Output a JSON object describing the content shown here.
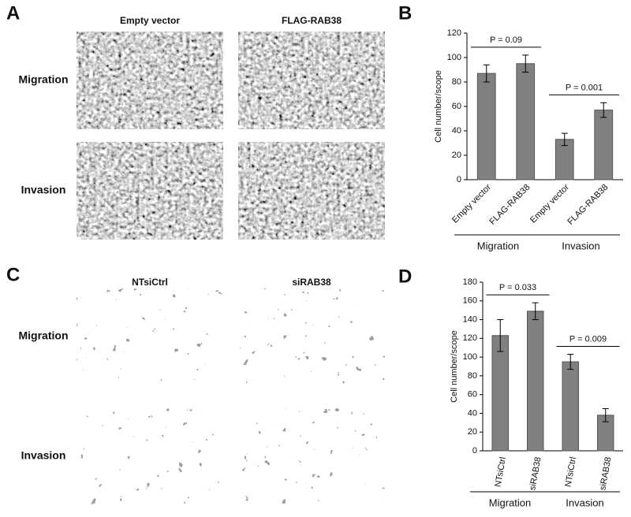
{
  "panels": [
    {
      "label": "A",
      "columns": [
        "Empty vector",
        "FLAG-RAB38"
      ],
      "rows": [
        "Migration",
        "Invasion"
      ]
    },
    {
      "label": "C",
      "columns": [
        "NTsiCtrl",
        "siRAB38"
      ],
      "rows": [
        "Migration",
        "Invasion"
      ]
    }
  ],
  "chart_data": [
    {
      "type": "bar",
      "panel_label": "B",
      "y_label": "Cell number/scope",
      "categories": [
        "Empty vector",
        "FLAG-RAB38",
        "Empty vector",
        "FLAG-RAB38"
      ],
      "values": [
        87,
        95,
        33,
        57
      ],
      "errors": [
        7,
        7,
        5,
        6
      ],
      "color": "#808080",
      "groups": [
        "Migration",
        "Invasion"
      ],
      "annotations": [
        "P = 0.09",
        "P = 0.001"
      ],
      "ylim": [
        0,
        120
      ],
      "yticks": [
        0,
        20,
        40,
        60,
        80,
        100,
        120
      ]
    },
    {
      "type": "bar",
      "panel_label": "D",
      "y_label": "Cell number/scope",
      "categories": [
        "NTsiCtrl",
        "siRAB38",
        "NTsiCtrl",
        "siRAB38"
      ],
      "values": [
        123,
        149,
        95,
        38
      ],
      "errors": [
        17,
        9,
        8,
        7
      ],
      "color": "#808080",
      "groups": [
        "Migration",
        "Invasion"
      ],
      "annotations": [
        "P = 0.033",
        "P = 0.009"
      ],
      "ylim": [
        0,
        180
      ],
      "yticks": [
        0,
        20,
        40,
        60,
        80,
        100,
        120,
        140,
        160,
        180
      ]
    }
  ]
}
